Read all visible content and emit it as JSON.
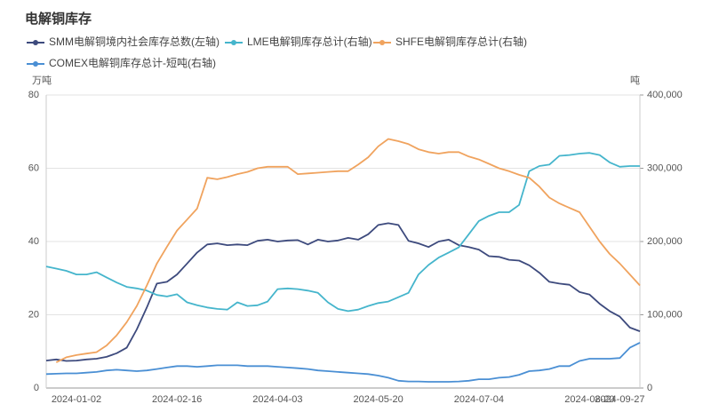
{
  "chart_data": {
    "type": "line",
    "title": "电解铜库存",
    "y_unit": "万吨",
    "y2_unit": "吨",
    "categories": [
      null,
      null,
      null,
      "2024-01-02",
      null,
      null,
      null,
      null,
      null,
      null,
      null,
      null,
      null,
      "2024-02-16",
      null,
      null,
      null,
      null,
      null,
      null,
      null,
      null,
      null,
      "2024-04-03",
      null,
      null,
      null,
      null,
      null,
      null,
      null,
      null,
      null,
      "2024-05-20",
      null,
      null,
      null,
      null,
      null,
      null,
      null,
      null,
      null,
      "2024-07-04",
      null,
      null,
      null,
      null,
      null,
      null,
      null,
      null,
      null,
      null,
      "2024-08-20",
      null,
      null,
      "2024-09-27",
      null,
      null
    ],
    "ylim": [
      0,
      80
    ],
    "yticks": [
      0,
      20,
      40,
      60,
      80
    ],
    "y2lim": [
      0,
      400000
    ],
    "y2ticks": [
      0,
      {
        "value": 100000,
        "label": "100,000"
      },
      {
        "value": 200000,
        "label": "200,000"
      },
      {
        "value": 300000,
        "label": "300,000"
      },
      {
        "value": 400000,
        "label": "400,000"
      }
    ],
    "grid": true,
    "series": [
      {
        "name": "SMM电解铜境内社会库存总数(左轴)",
        "color": "#3d4a7d",
        "values": [
          7.5,
          7.8,
          7.4,
          7.5,
          7.8,
          8,
          8.5,
          9.5,
          11,
          16,
          22,
          28.5,
          29,
          31,
          34,
          37,
          39.2,
          39.5,
          39,
          39.2,
          39,
          40.2,
          40.5,
          40,
          40.3,
          40.4,
          39.2,
          40.5,
          40,
          40.3,
          41,
          40.5,
          42,
          44.5,
          45,
          44.5,
          40.2,
          39.5,
          38.5,
          40,
          40.5,
          39,
          38.5,
          37.8,
          36,
          35.8,
          35,
          34.8,
          33.5,
          31.5,
          29,
          28.5,
          28.2,
          26.2,
          25.5,
          23,
          21,
          19.5,
          16.5,
          15.5
        ]
      },
      {
        "name": "LME电解铜库存总计(右轴)",
        "color": "#45b5cc",
        "axis": "y2",
        "values": [
          166000,
          163000,
          160000,
          155000,
          155000,
          158000,
          151000,
          144000,
          138000,
          136000,
          133000,
          127000,
          125000,
          128000,
          117000,
          113000,
          110000,
          108000,
          107000,
          117000,
          112000,
          113000,
          118000,
          135000,
          136000,
          135000,
          133000,
          130000,
          117000,
          108000,
          105000,
          107000,
          112000,
          116000,
          118000,
          124000,
          130000,
          155000,
          168000,
          178000,
          185000,
          192000,
          210000,
          228000,
          235000,
          240000,
          240000,
          250000,
          296000,
          303000,
          305000,
          317000,
          318000,
          320000,
          321000,
          318000,
          308000,
          302000,
          303000,
          303000
        ]
      },
      {
        "name": "SHFE电解铜库存总计(右轴)",
        "color": "#f0a35e",
        "axis": "y2",
        "values": [
          null,
          35000,
          42000,
          45000,
          47000,
          49000,
          58000,
          72000,
          90000,
          112000,
          140000,
          170000,
          193000,
          215000,
          230000,
          245000,
          287000,
          285000,
          288000,
          292000,
          295000,
          300000,
          302000,
          302000,
          302000,
          292000,
          293000,
          294000,
          295000,
          296000,
          296000,
          305000,
          315000,
          330000,
          340000,
          337000,
          333000,
          326000,
          322000,
          320000,
          322000,
          322000,
          316000,
          312000,
          306000,
          300000,
          296000,
          291000,
          287000,
          275000,
          260000,
          252000,
          246000,
          240000,
          220000,
          200000,
          183000,
          170000,
          155000,
          140000
        ]
      },
      {
        "name": "COMEX电解铜库存总计-短吨(右轴)",
        "color": "#4a8fd4",
        "axis": "y2",
        "values": [
          19000,
          19500,
          20000,
          20000,
          21000,
          22000,
          24000,
          25000,
          24000,
          23000,
          24000,
          26000,
          28000,
          30000,
          30000,
          29000,
          30000,
          31000,
          31000,
          31000,
          30000,
          30000,
          30000,
          29000,
          28000,
          27000,
          26000,
          24000,
          23000,
          22000,
          21000,
          20000,
          19000,
          17000,
          14000,
          10000,
          9000,
          9000,
          8500,
          8500,
          8500,
          9000,
          10000,
          12000,
          12000,
          14000,
          15000,
          18000,
          23000,
          24000,
          26000,
          30000,
          30000,
          37000,
          40000,
          40000,
          40000,
          41000,
          55000,
          62000
        ]
      }
    ]
  }
}
